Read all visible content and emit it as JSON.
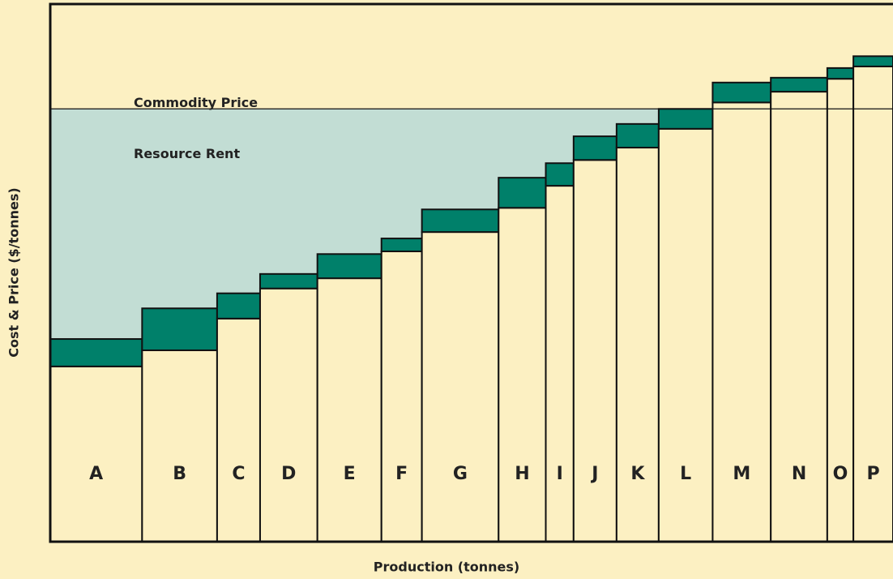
{
  "chart_data": {
    "type": "cost-curve",
    "x_label": "Production (tonnes)",
    "y_label": "Cost & Price ($/tonnes)",
    "price_label": "Commodity Price",
    "rent_label": "Resource Rent",
    "categories": [
      "A",
      "B",
      "C",
      "D",
      "E",
      "F",
      "G",
      "H",
      "I",
      "J",
      "K",
      "L",
      "M",
      "N",
      "O",
      "P"
    ],
    "bins": [
      0,
      10.9,
      19.8,
      24.9,
      31.7,
      39.3,
      44.1,
      53.2,
      58.8,
      62.1,
      67.2,
      72.2,
      78.6,
      85.5,
      92.2,
      95.3,
      100
    ],
    "costs": [
      32.6,
      35.6,
      41.5,
      47.1,
      49.0,
      54.0,
      57.6,
      62.1,
      66.2,
      71.0,
      73.3,
      76.8,
      81.7,
      83.7,
      86.1,
      88.4
    ],
    "margins": [
      5.1,
      7.8,
      4.7,
      2.7,
      4.5,
      2.4,
      4.2,
      5.6,
      4.2,
      4.4,
      4.4,
      3.7,
      3.7,
      2.6,
      2.0,
      1.9
    ],
    "price": 80.5,
    "xlim": [
      0,
      100
    ],
    "ylim": [
      0,
      100
    ],
    "cost_color": "#fcf0c2",
    "margin_color": "#00806a",
    "rent_color": "#c2ddd4",
    "background_color": "#fcf0c2"
  }
}
